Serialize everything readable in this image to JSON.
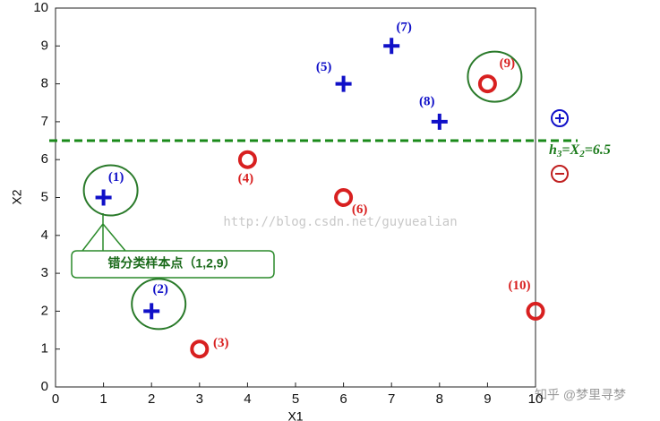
{
  "chart_data": {
    "type": "scatter",
    "x_label": "X1",
    "y_label": "X2",
    "xlim": [
      0,
      10
    ],
    "ylim": [
      0,
      10
    ],
    "xticks": [
      0,
      1,
      2,
      3,
      4,
      5,
      6,
      7,
      8,
      9,
      10
    ],
    "yticks": [
      0,
      1,
      2,
      3,
      4,
      5,
      6,
      7,
      8,
      9,
      10
    ],
    "series": [
      {
        "marker": "plus",
        "color": "#1010c8",
        "x": [
          1,
          2,
          6,
          7,
          8
        ],
        "values": [
          5,
          2,
          8,
          9,
          7
        ],
        "point_labels": [
          "(1)",
          "(2)",
          "(5)",
          "(7)",
          "(8)"
        ]
      },
      {
        "marker": "circle",
        "color": "#d82020",
        "x": [
          3,
          4,
          6,
          9,
          10
        ],
        "values": [
          1,
          6,
          5,
          8,
          2
        ],
        "point_labels": [
          "(3)",
          "(4)",
          "(6)",
          "(9)",
          "(10)"
        ]
      }
    ],
    "hline": 6.5,
    "hline_label": [
      "h",
      "3",
      "=X",
      "2",
      "=6.5"
    ],
    "callout": "错分类样本点（1,2,9）",
    "watermark": "http://blog.csdn.net/guyuealian",
    "source": "知乎 @梦里寻梦"
  }
}
